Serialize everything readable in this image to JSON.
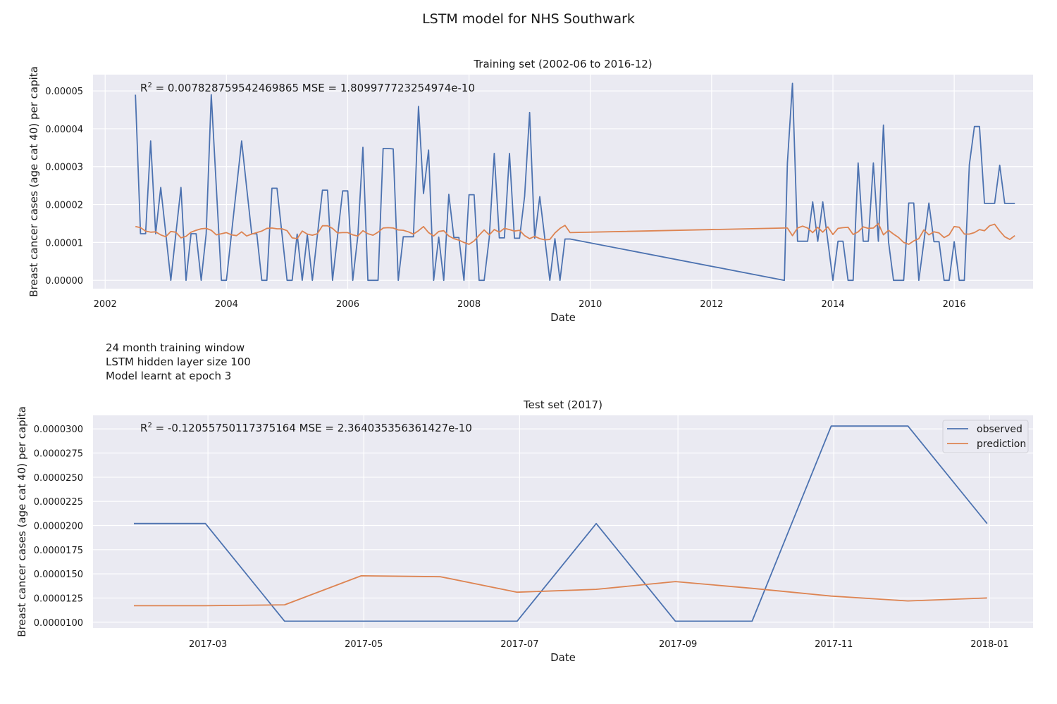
{
  "figure": {
    "title": "LSTM model for NHS Southwark",
    "info_lines": [
      "24 month training window",
      "LSTM hidden layer size 100",
      "Model learnt at epoch 3"
    ]
  },
  "colors": {
    "observed": "#4c72b0",
    "prediction": "#dd8452",
    "axes_bg": "#eaeaf2",
    "grid": "#ffffff"
  },
  "chart_data": [
    {
      "type": "line",
      "title": "Training set (2002-06 to 2016-12)",
      "xlabel": "Date",
      "ylabel": "Breast cancer cases (age cat 40) per capita",
      "xlim": [
        2001.8,
        2017.3
      ],
      "ylim": [
        -2.2e-06,
        5.43e-05
      ],
      "x_ticks": [
        2002,
        2004,
        2006,
        2008,
        2010,
        2012,
        2014,
        2016
      ],
      "x_tick_labels": [
        "2002",
        "2004",
        "2006",
        "2008",
        "2010",
        "2012",
        "2014",
        "2016"
      ],
      "y_ticks": [
        0,
        1e-05,
        2e-05,
        3e-05,
        4e-05,
        5e-05
      ],
      "y_tick_labels": [
        "0.00000",
        "0.00001",
        "0.00002",
        "0.00003",
        "0.00004",
        "0.00005"
      ],
      "annotation": {
        "r2_label": "R",
        "r2_exp": "2",
        "text": " = 0.007828759542469865  MSE = 1.809977723254974e-10"
      },
      "legend": null,
      "x_start": 2002.5,
      "x_step": 0.08333,
      "series": [
        {
          "key": "observed",
          "values": [
            4.9e-05,
            1.23e-05,
            1.23e-05,
            3.68e-05,
            1.23e-05,
            2.45e-05,
            1.23e-05,
            0,
            1.23e-05,
            2.45e-05,
            0,
            1.23e-05,
            1.23e-05,
            0,
            1.23e-05,
            4.9e-05,
            2.45e-05,
            0,
            0,
            1.23e-05,
            2.45e-05,
            3.68e-05,
            2.45e-05,
            1.23e-05,
            1.23e-05,
            0,
            0,
            2.43e-05,
            2.43e-05,
            1.22e-05,
            0,
            0,
            1.22e-05,
            0,
            1.2e-05,
            0,
            1.19e-05,
            2.38e-05,
            2.38e-05,
            0,
            1.18e-05,
            2.36e-05,
            2.36e-05,
            0,
            1.17e-05,
            3.51e-05,
            0,
            0,
            0,
            3.48e-05,
            3.48e-05,
            3.47e-05,
            0,
            1.15e-05,
            1.15e-05,
            1.15e-05,
            4.59e-05,
            2.29e-05,
            3.44e-05,
            0,
            1.14e-05,
            0,
            2.27e-05,
            1.13e-05,
            1.13e-05,
            0,
            2.26e-05,
            2.26e-05,
            0,
            0,
            1.12e-05,
            3.35e-05,
            1.12e-05,
            1.12e-05,
            3.35e-05,
            1.11e-05,
            1.11e-05,
            2.22e-05,
            4.43e-05,
            1.11e-05,
            2.21e-05,
            1.1e-05,
            0,
            1.1e-05,
            0,
            1.09e-05,
            1.09e-05
          ]
        },
        {
          "key": "prediction",
          "values": [
            1.42e-05,
            1.39e-05,
            1.3e-05,
            1.27e-05,
            1.28e-05,
            1.2e-05,
            1.15e-05,
            1.29e-05,
            1.27e-05,
            1.12e-05,
            1.16e-05,
            1.27e-05,
            1.32e-05,
            1.36e-05,
            1.37e-05,
            1.32e-05,
            1.2e-05,
            1.23e-05,
            1.26e-05,
            1.2e-05,
            1.18e-05,
            1.28e-05,
            1.17e-05,
            1.22e-05,
            1.26e-05,
            1.3e-05,
            1.37e-05,
            1.38e-05,
            1.36e-05,
            1.36e-05,
            1.31e-05,
            1.12e-05,
            1.1e-05,
            1.3e-05,
            1.22e-05,
            1.19e-05,
            1.23e-05,
            1.44e-05,
            1.44e-05,
            1.37e-05,
            1.25e-05,
            1.26e-05,
            1.26e-05,
            1.2e-05,
            1.17e-05,
            1.31e-05,
            1.23e-05,
            1.19e-05,
            1.27e-05,
            1.38e-05,
            1.39e-05,
            1.38e-05,
            1.33e-05,
            1.32e-05,
            1.28e-05,
            1.22e-05,
            1.31e-05,
            1.42e-05,
            1.26e-05,
            1.17e-05,
            1.29e-05,
            1.31e-05,
            1.17e-05,
            1.1e-05,
            1.06e-05,
            1e-05,
            9.5e-06,
            1.04e-05,
            1.19e-05,
            1.33e-05,
            1.2e-05,
            1.34e-05,
            1.27e-05,
            1.37e-05,
            1.34e-05,
            1.3e-05,
            1.32e-05,
            1.18e-05,
            1.1e-05,
            1.16e-05,
            1.1e-05,
            1.07e-05,
            1.08e-05,
            1.25e-05,
            1.37e-05,
            1.45e-05,
            1.26e-05
          ]
        }
      ],
      "gap_points": [
        {
          "x": 2013.2,
          "observed": 0,
          "prediction": 1.38e-05
        }
      ],
      "late_x_start": 2013.25,
      "late_series": [
        {
          "key": "observed",
          "values": [
            3.1e-05,
            5.2e-05,
            1.03e-05,
            1.03e-05,
            1.03e-05,
            2.07e-05,
            1.03e-05,
            2.07e-05,
            1.03e-05,
            0,
            1.03e-05,
            1.03e-05,
            0,
            0,
            3.1e-05,
            1.03e-05,
            1.03e-05,
            3.1e-05,
            1.03e-05,
            4.1e-05,
            1.02e-05,
            0,
            0,
            0,
            2.04e-05,
            2.04e-05,
            0,
            1.02e-05,
            2.04e-05,
            1.02e-05,
            1.02e-05,
            0,
            0,
            1.02e-05,
            0,
            0,
            3.05e-05,
            4.06e-05,
            4.06e-05,
            2.03e-05,
            2.03e-05,
            2.03e-05,
            3.04e-05,
            2.03e-05,
            2.03e-05,
            2.03e-05
          ]
        },
        {
          "key": "prediction",
          "values": [
            1.38e-05,
            1.18e-05,
            1.38e-05,
            1.43e-05,
            1.38e-05,
            1.26e-05,
            1.4e-05,
            1.27e-05,
            1.41e-05,
            1.21e-05,
            1.37e-05,
            1.39e-05,
            1.4e-05,
            1.21e-05,
            1.28e-05,
            1.41e-05,
            1.37e-05,
            1.38e-05,
            1.5e-05,
            1.2e-05,
            1.32e-05,
            1.22e-05,
            1.13e-05,
            1e-05,
            9.5e-06,
            1.04e-05,
            1.1e-05,
            1.33e-05,
            1.2e-05,
            1.28e-05,
            1.25e-05,
            1.13e-05,
            1.2e-05,
            1.42e-05,
            1.4e-05,
            1.22e-05,
            1.22e-05,
            1.26e-05,
            1.34e-05,
            1.31e-05,
            1.44e-05,
            1.48e-05,
            1.3e-05,
            1.15e-05,
            1.08e-05,
            1.18e-05
          ]
        }
      ]
    },
    {
      "type": "line",
      "title": "Test set (2017)",
      "xlabel": "Date",
      "ylabel": "Breast cancer cases (age cat 40) per capita",
      "x": [
        "2017-01-31",
        "2017-02-28",
        "2017-03-31",
        "2017-04-30",
        "2017-05-31",
        "2017-06-30",
        "2017-07-31",
        "2017-08-31",
        "2017-09-30",
        "2017-10-31",
        "2017-11-30",
        "2017-12-31"
      ],
      "xlim": [
        "2017-01-15",
        "2018-01-18"
      ],
      "ylim": [
        9.4e-06,
        3.14e-05
      ],
      "x_ticks": [
        "2017-03-01",
        "2017-05-01",
        "2017-07-01",
        "2017-09-01",
        "2017-11-01",
        "2018-01-01"
      ],
      "x_tick_labels": [
        "2017-03",
        "2017-05",
        "2017-07",
        "2017-09",
        "2017-11",
        "2018-01"
      ],
      "y_ticks": [
        1e-05,
        1.25e-05,
        1.5e-05,
        1.75e-05,
        2e-05,
        2.25e-05,
        2.5e-05,
        2.75e-05,
        3e-05
      ],
      "y_tick_labels": [
        "0.0000100",
        "0.0000125",
        "0.0000150",
        "0.0000175",
        "0.0000200",
        "0.0000225",
        "0.0000250",
        "0.0000275",
        "0.0000300"
      ],
      "annotation": {
        "r2_label": "R",
        "r2_exp": "2",
        "text": " = -0.12055750117375164  MSE = 2.364035356361427e-10"
      },
      "legend": {
        "position": "top-right",
        "entries": [
          "observed",
          "prediction"
        ]
      },
      "series": [
        {
          "key": "observed",
          "name": "observed",
          "values": [
            2.02e-05,
            2.02e-05,
            1.01e-05,
            1.01e-05,
            1.01e-05,
            1.01e-05,
            2.02e-05,
            1.01e-05,
            1.01e-05,
            3.03e-05,
            3.03e-05,
            2.02e-05
          ]
        },
        {
          "key": "prediction",
          "name": "prediction",
          "values": [
            1.17e-05,
            1.17e-05,
            1.18e-05,
            1.48e-05,
            1.47e-05,
            1.31e-05,
            1.34e-05,
            1.42e-05,
            1.35e-05,
            1.27e-05,
            1.22e-05,
            1.25e-05
          ]
        }
      ]
    }
  ]
}
